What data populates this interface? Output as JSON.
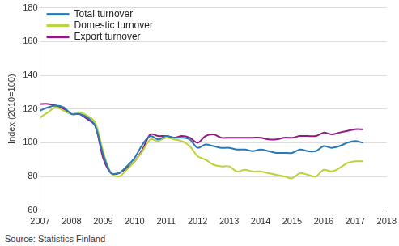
{
  "chart_data": {
    "type": "line",
    "y_label": "Index (2010=100)",
    "source": "Source: Statistics Finland",
    "x": [
      2007,
      2007.25,
      2007.5,
      2007.75,
      2008,
      2008.25,
      2008.5,
      2008.75,
      2009,
      2009.25,
      2009.5,
      2009.75,
      2010,
      2010.25,
      2010.5,
      2010.75,
      2011,
      2011.25,
      2011.5,
      2011.75,
      2012,
      2012.25,
      2012.5,
      2012.75,
      2013,
      2013.25,
      2013.5,
      2013.75,
      2014,
      2014.25,
      2014.5,
      2014.75,
      2015,
      2015.25,
      2015.5,
      2015.75,
      2016,
      2016.25,
      2016.5,
      2016.75,
      2017,
      2017.25
    ],
    "series": [
      {
        "name": "Total turnover",
        "color": "#2a78b8",
        "values": [
          119,
          121,
          122,
          121,
          117,
          117,
          115,
          110,
          93,
          82,
          82,
          86,
          91,
          99,
          104,
          102,
          104,
          103,
          103,
          102,
          97,
          99,
          98,
          97,
          97,
          96,
          96,
          95,
          96,
          95,
          94,
          94,
          94,
          96,
          95,
          95,
          98,
          97,
          98,
          100,
          101,
          100
        ]
      },
      {
        "name": "Domestic turnover",
        "color": "#b8d437",
        "values": [
          115,
          118,
          121,
          119,
          117,
          118,
          116,
          112,
          95,
          82,
          80,
          84,
          89,
          95,
          102,
          101,
          103,
          102,
          101,
          98,
          92,
          90,
          87,
          86,
          86,
          83,
          84,
          83,
          83,
          82,
          81,
          80,
          79,
          82,
          81,
          80,
          84,
          83,
          85,
          88,
          89,
          89
        ]
      },
      {
        "name": "Export turnover",
        "color": "#8e1c80",
        "values": [
          123,
          123,
          122,
          120,
          117,
          117,
          114,
          110,
          91,
          82,
          82,
          85,
          89,
          96,
          105,
          104,
          104,
          103,
          104,
          103,
          100,
          104,
          105,
          103,
          103,
          103,
          103,
          103,
          103,
          102,
          102,
          103,
          103,
          104,
          104,
          104,
          106,
          105,
          106,
          107,
          108,
          108
        ]
      }
    ],
    "xlim": [
      2007,
      2018
    ],
    "xticks": [
      2007,
      2008,
      2009,
      2010,
      2011,
      2012,
      2013,
      2014,
      2015,
      2016,
      2017,
      2018
    ],
    "ylim": [
      60,
      180
    ],
    "yticks": [
      60,
      80,
      100,
      120,
      140,
      160,
      180
    ],
    "grid": true,
    "legend": "upper left"
  }
}
